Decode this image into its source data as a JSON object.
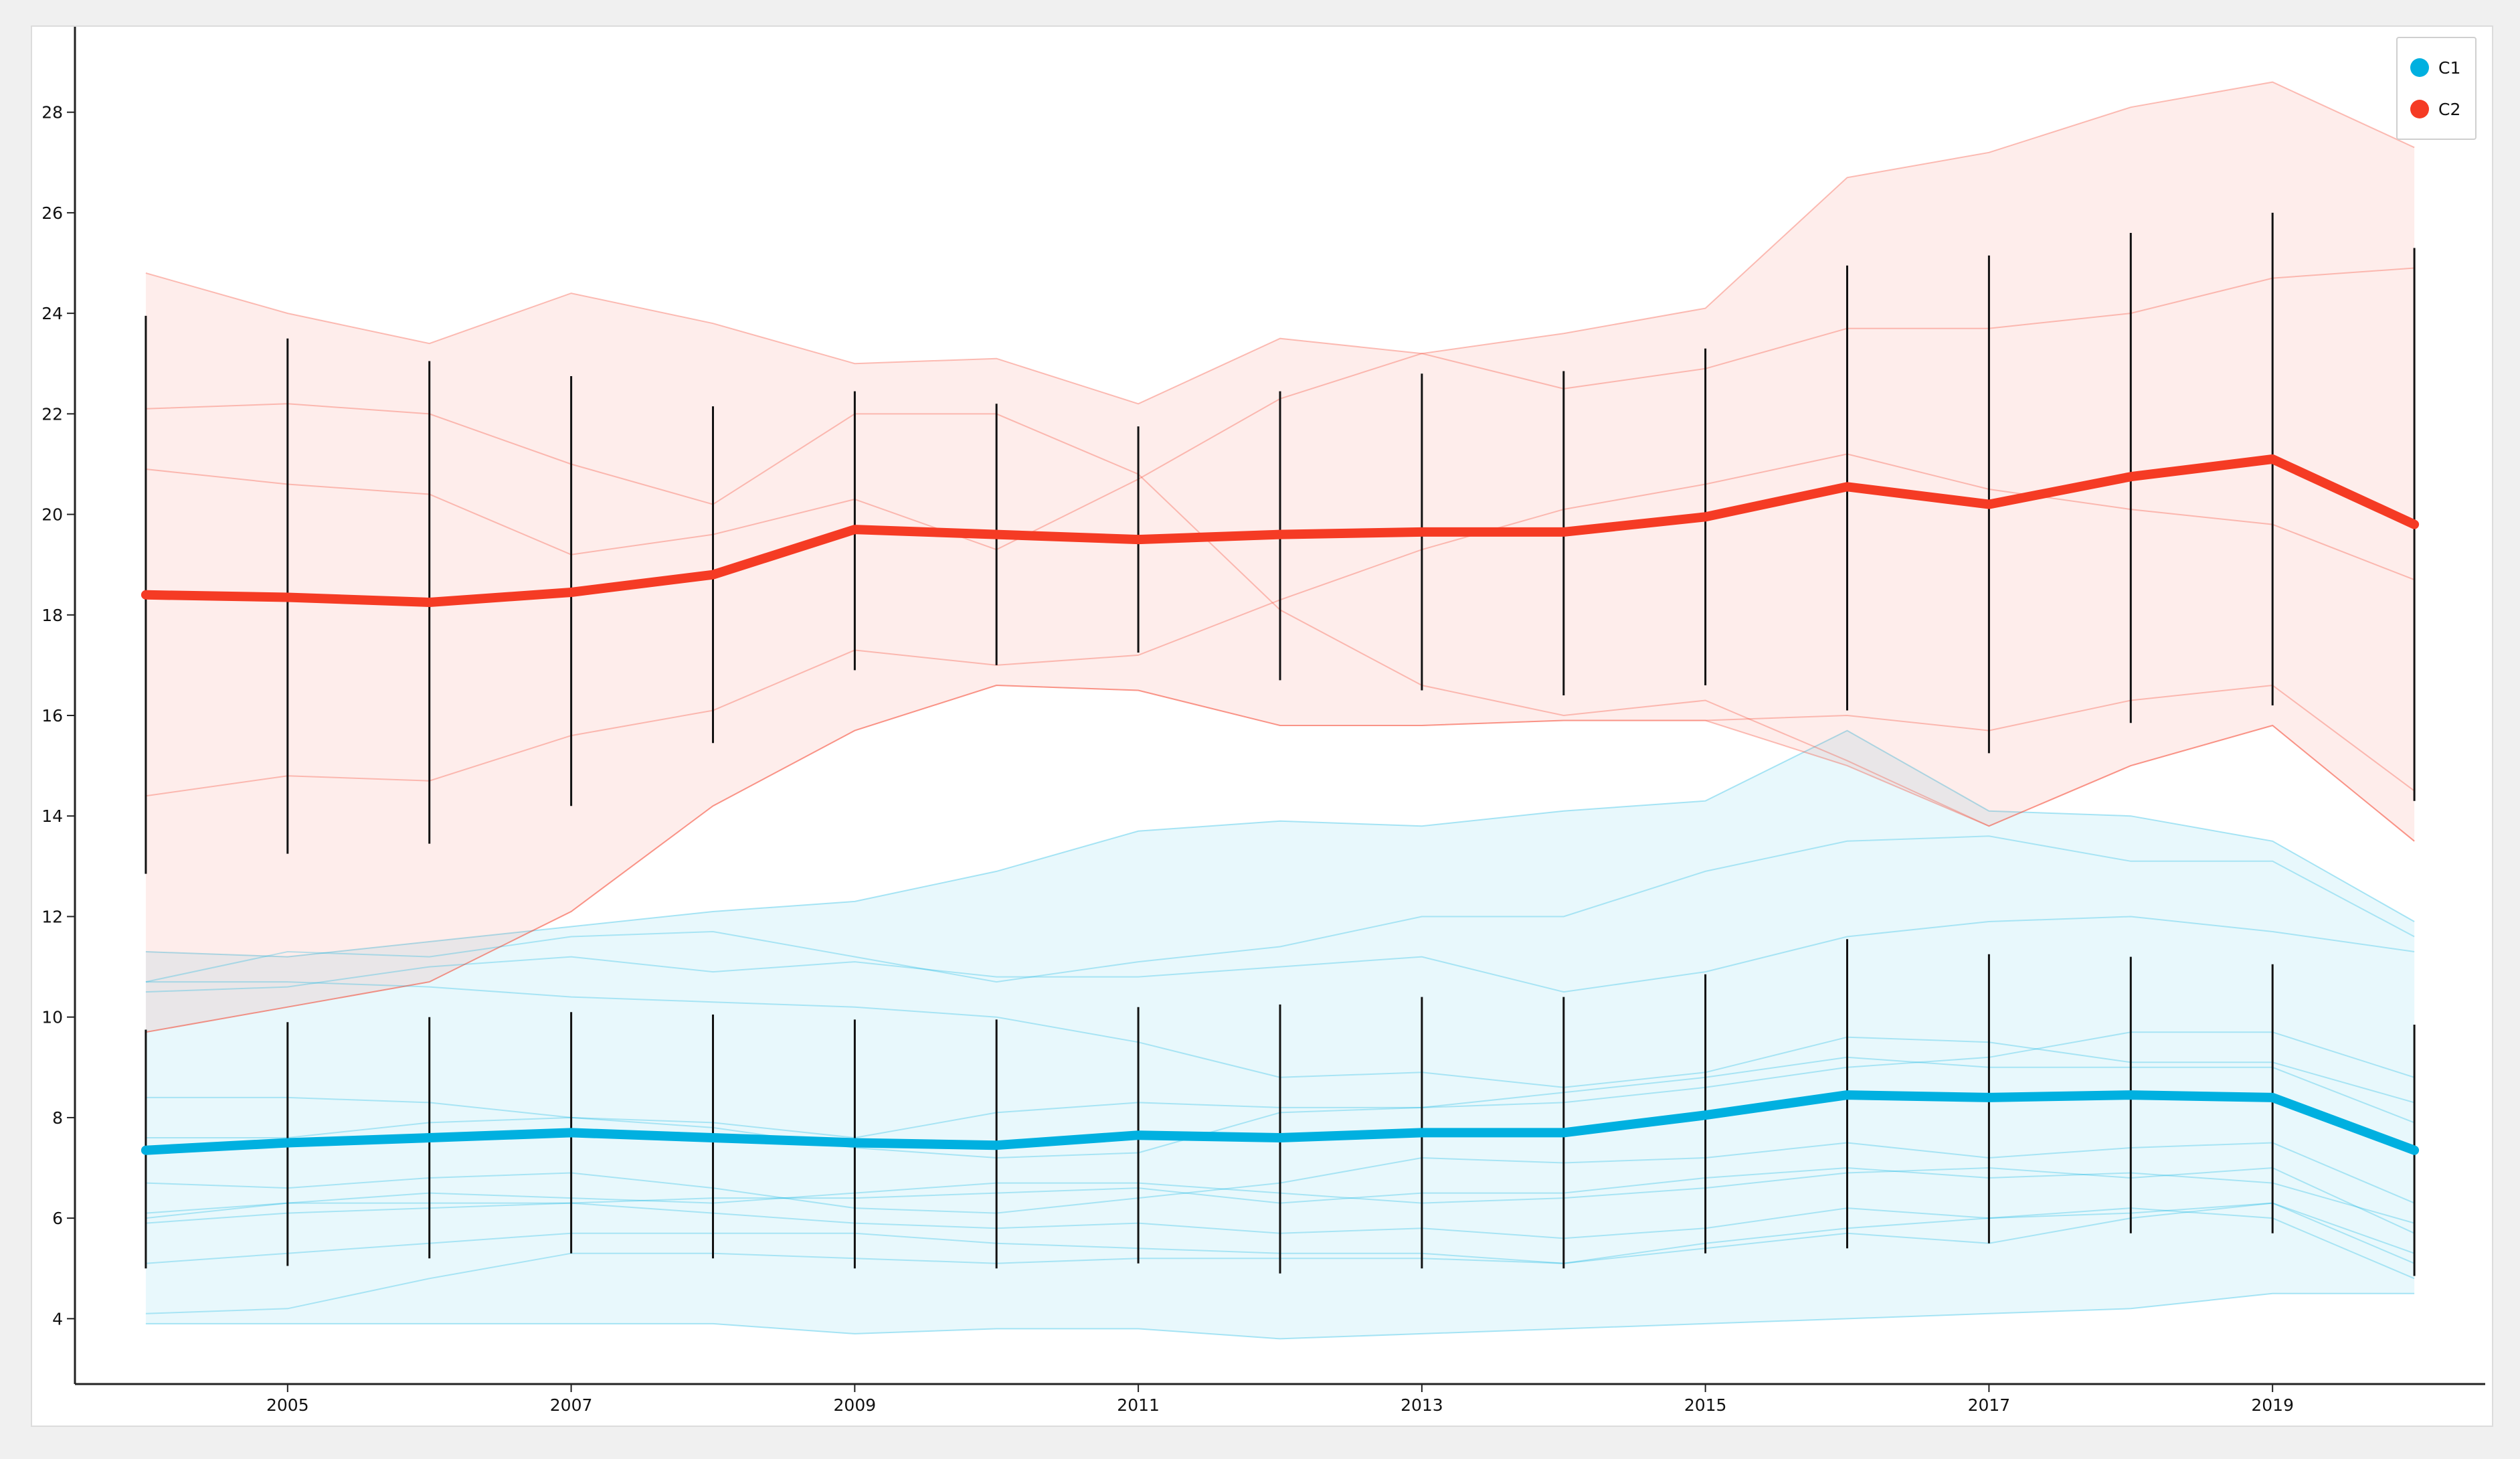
{
  "chart_data": {
    "type": "line",
    "title": "",
    "xlabel": "",
    "ylabel": "",
    "x": [
      2004,
      2005,
      2006,
      2007,
      2008,
      2009,
      2010,
      2011,
      2012,
      2013,
      2014,
      2015,
      2016,
      2017,
      2018,
      2019,
      2020
    ],
    "xticks": [
      "2005",
      "2007",
      "2009",
      "2011",
      "2013",
      "2015",
      "2017",
      "2019"
    ],
    "yticks": [
      "4",
      "6",
      "8",
      "10",
      "12",
      "14",
      "16",
      "18",
      "20",
      "22",
      "24",
      "26",
      "28"
    ],
    "xlim": [
      2003.5,
      2020.5
    ],
    "ylim": [
      2.7,
      29.7
    ],
    "grid": false,
    "legend_position": "top-right",
    "colors": {
      "C1": "#00b0e0",
      "C2": "#f53b24",
      "error_bar": "#111111"
    },
    "series": [
      {
        "name": "C1",
        "mean": [
          7.35,
          7.5,
          7.6,
          7.7,
          7.6,
          7.5,
          7.45,
          7.65,
          7.6,
          7.7,
          7.7,
          8.05,
          8.45,
          8.4,
          8.45,
          8.4,
          7.35
        ],
        "lower": [
          3.9,
          3.9,
          3.9,
          3.9,
          3.9,
          3.7,
          3.8,
          3.8,
          3.6,
          3.7,
          3.8,
          3.9,
          4.0,
          4.1,
          4.2,
          4.5,
          4.5
        ],
        "upper": [
          11.3,
          11.2,
          11.5,
          11.8,
          12.1,
          12.3,
          12.9,
          13.7,
          13.9,
          13.8,
          14.1,
          14.3,
          15.7,
          14.1,
          14.0,
          13.5,
          11.9
        ],
        "error_low": [
          5.0,
          5.05,
          5.2,
          5.3,
          5.2,
          5.0,
          5.0,
          5.1,
          4.9,
          5.0,
          5.0,
          5.3,
          5.4,
          5.5,
          5.7,
          5.7,
          4.85
        ],
        "error_high": [
          9.75,
          9.9,
          10.0,
          10.1,
          10.05,
          9.95,
          9.95,
          10.2,
          10.25,
          10.4,
          10.4,
          10.85,
          11.55,
          11.25,
          11.2,
          11.05,
          9.85
        ],
        "members": [
          [
            10.5,
            10.6,
            11.0,
            11.2,
            10.9,
            11.1,
            10.8,
            10.8,
            11.0,
            11.2,
            10.5,
            10.9,
            11.6,
            11.9,
            12.0,
            11.7,
            11.3
          ],
          [
            10.7,
            11.3,
            11.2,
            11.6,
            11.7,
            11.2,
            10.7,
            11.1,
            11.4,
            12.0,
            12.0,
            12.9,
            13.5,
            13.6,
            13.1,
            13.1,
            11.6
          ],
          [
            10.7,
            10.7,
            10.6,
            10.4,
            10.3,
            10.2,
            10.0,
            9.5,
            8.8,
            8.9,
            8.6,
            8.9,
            9.6,
            9.5,
            9.1,
            9.1,
            8.3
          ],
          [
            8.4,
            8.4,
            8.3,
            8.0,
            7.8,
            7.4,
            7.2,
            7.3,
            8.1,
            8.2,
            8.5,
            8.8,
            9.2,
            9.0,
            9.0,
            9.0,
            7.9
          ],
          [
            7.6,
            7.6,
            7.9,
            8.0,
            7.9,
            7.6,
            8.1,
            8.3,
            8.2,
            8.2,
            8.3,
            8.6,
            9.0,
            9.2,
            9.7,
            9.7,
            8.8
          ],
          [
            6.7,
            6.6,
            6.8,
            6.9,
            6.6,
            6.2,
            6.1,
            6.4,
            6.7,
            7.2,
            7.1,
            7.2,
            7.5,
            7.2,
            7.4,
            7.5,
            6.3
          ],
          [
            6.1,
            6.3,
            6.5,
            6.4,
            6.3,
            6.5,
            6.7,
            6.7,
            6.5,
            6.3,
            6.4,
            6.6,
            6.9,
            7.0,
            6.8,
            7.0,
            5.7
          ],
          [
            6.0,
            6.3,
            6.3,
            6.3,
            6.1,
            5.9,
            5.8,
            5.9,
            5.7,
            5.8,
            5.6,
            5.8,
            6.2,
            6.0,
            6.1,
            6.3,
            5.3
          ],
          [
            5.1,
            5.3,
            5.5,
            5.7,
            5.7,
            5.7,
            5.5,
            5.4,
            5.3,
            5.3,
            5.1,
            5.4,
            5.7,
            5.5,
            6.0,
            6.3,
            5.1
          ],
          [
            4.1,
            4.2,
            4.8,
            5.3,
            5.3,
            5.2,
            5.1,
            5.2,
            5.2,
            5.2,
            5.1,
            5.5,
            5.8,
            6.0,
            6.2,
            6.0,
            4.8
          ],
          [
            5.9,
            6.1,
            6.2,
            6.3,
            6.4,
            6.4,
            6.5,
            6.6,
            6.3,
            6.5,
            6.5,
            6.8,
            7.0,
            6.8,
            6.9,
            6.7,
            5.9
          ]
        ]
      },
      {
        "name": "C2",
        "mean": [
          18.4,
          18.35,
          18.25,
          18.45,
          18.8,
          19.7,
          19.6,
          19.5,
          19.6,
          19.65,
          19.65,
          19.95,
          20.55,
          20.2,
          20.75,
          21.1,
          19.8
        ],
        "lower": [
          9.7,
          10.2,
          10.7,
          12.1,
          14.2,
          15.7,
          16.6,
          16.5,
          15.8,
          15.8,
          15.9,
          15.9,
          15.0,
          13.8,
          15.0,
          15.8,
          13.5
        ],
        "upper": [
          24.8,
          24.0,
          23.4,
          24.4,
          23.8,
          23.0,
          23.1,
          22.2,
          23.5,
          23.2,
          23.6,
          24.1,
          26.7,
          27.2,
          28.1,
          28.6,
          27.3
        ],
        "error_low": [
          12.85,
          13.25,
          13.45,
          14.2,
          15.45,
          16.9,
          17.0,
          17.25,
          16.7,
          16.5,
          16.4,
          16.6,
          16.1,
          15.25,
          15.85,
          16.2,
          14.3
        ],
        "error_high": [
          23.95,
          23.5,
          23.05,
          22.75,
          22.15,
          22.45,
          22.2,
          21.75,
          22.45,
          22.8,
          22.85,
          23.3,
          24.95,
          25.15,
          25.6,
          26.0,
          25.3
        ],
        "members": [
          [
            22.1,
            22.2,
            22.0,
            21.0,
            20.2,
            22.0,
            22.0,
            20.8,
            18.1,
            16.6,
            16.0,
            16.3,
            15.1,
            13.8,
            15.0,
            15.8,
            13.5
          ],
          [
            20.9,
            20.6,
            20.4,
            19.2,
            19.6,
            20.3,
            19.3,
            20.7,
            22.3,
            23.2,
            22.5,
            22.9,
            23.7,
            23.7,
            24.0,
            24.7,
            24.9
          ],
          [
            14.4,
            14.8,
            14.7,
            15.6,
            16.1,
            17.3,
            17.0,
            17.2,
            18.3,
            19.3,
            20.1,
            20.6,
            21.2,
            20.5,
            20.1,
            19.8,
            18.7
          ],
          [
            9.7,
            10.2,
            10.7,
            12.1,
            14.2,
            15.7,
            16.6,
            16.5,
            15.8,
            15.8,
            15.9,
            15.9,
            16.0,
            15.7,
            16.3,
            16.6,
            14.5
          ]
        ]
      }
    ]
  }
}
